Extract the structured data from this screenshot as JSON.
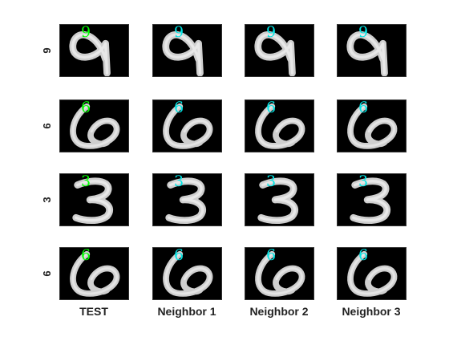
{
  "figure": {
    "column_titles": [
      "TEST",
      "Neighbor 1",
      "Neighbor 2",
      "Neighbor 3"
    ],
    "rows": [
      {
        "row_label": "9",
        "cells": [
          {
            "digit": "9",
            "color": "#00ff00",
            "glyph": "nine"
          },
          {
            "digit": "9",
            "color": "#00e5e5",
            "glyph": "nine"
          },
          {
            "digit": "9",
            "color": "#00e5e5",
            "glyph": "nine"
          },
          {
            "digit": "9",
            "color": "#00e5e5",
            "glyph": "nine"
          }
        ]
      },
      {
        "row_label": "6",
        "cells": [
          {
            "digit": "6",
            "color": "#00ff00",
            "glyph": "six"
          },
          {
            "digit": "6",
            "color": "#00e5e5",
            "glyph": "six"
          },
          {
            "digit": "6",
            "color": "#00e5e5",
            "glyph": "six"
          },
          {
            "digit": "6",
            "color": "#00e5e5",
            "glyph": "six"
          }
        ]
      },
      {
        "row_label": "3",
        "cells": [
          {
            "digit": "3",
            "color": "#00ff00",
            "glyph": "three"
          },
          {
            "digit": "3",
            "color": "#00e5e5",
            "glyph": "three"
          },
          {
            "digit": "3",
            "color": "#00e5e5",
            "glyph": "three"
          },
          {
            "digit": "3",
            "color": "#00e5e5",
            "glyph": "three"
          }
        ]
      },
      {
        "row_label": "6",
        "cells": [
          {
            "digit": "6",
            "color": "#00ff00",
            "glyph": "six"
          },
          {
            "digit": "6",
            "color": "#00e5e5",
            "glyph": "six"
          },
          {
            "digit": "6",
            "color": "#00e5e5",
            "glyph": "six"
          },
          {
            "digit": "6",
            "color": "#00e5e5",
            "glyph": "six"
          }
        ]
      }
    ]
  }
}
